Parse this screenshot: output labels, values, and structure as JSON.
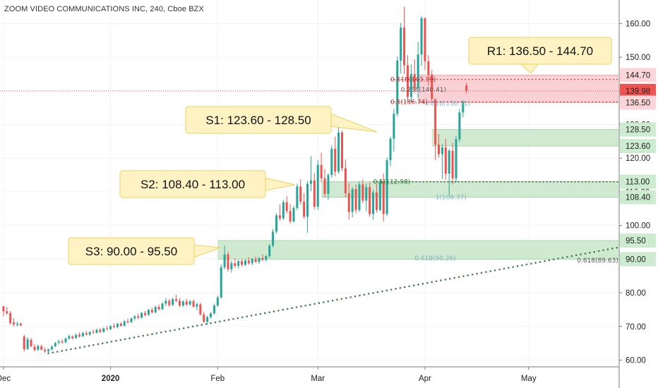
{
  "header": {
    "title": "ZOOM VIDEO COMMUNICATIONS INC, 240, Cboe BZX"
  },
  "colors": {
    "up": "#26a69a",
    "down": "#ef5350",
    "support_zone": "#c8e6c9",
    "resistance_zone": "#f8c8cc",
    "price_label": "#ef5350",
    "trendline": "#4a7c59",
    "callout_fill": "#fff3c4",
    "callout_border": "#f0d060"
  },
  "chart_data": {
    "type": "candlestick",
    "symbol": "ZOOM VIDEO COMMUNICATIONS INC",
    "interval": "240",
    "exchange": "Cboe BZX",
    "ylim": [
      58,
      167
    ],
    "y_ticks": [
      60,
      70,
      80,
      90,
      100,
      110,
      120,
      130,
      140,
      150,
      160
    ],
    "y_tick_labels": [
      "60.00",
      "70.00",
      "80.00",
      "90.00",
      "100.00",
      "110.00",
      "120.00",
      "130.00",
      "140.00",
      "150.00",
      "160.00"
    ],
    "x_labels": [
      {
        "label": "Dec",
        "date": "2019-12-01"
      },
      {
        "label": "2020",
        "date": "2020-01-01"
      },
      {
        "label": "Feb",
        "date": "2020-02-01"
      },
      {
        "label": "Mar",
        "date": "2020-03-01"
      },
      {
        "label": "Apr",
        "date": "2020-04-01"
      },
      {
        "label": "May",
        "date": "2020-05-01"
      }
    ],
    "xlim": [
      "2019-11-30",
      "2020-05-27"
    ],
    "last_price": 139.98,
    "price_axis_labels": [
      {
        "value": 144.7,
        "label": "144.70",
        "kind": "resistance"
      },
      {
        "value": 139.98,
        "label": "139.98",
        "kind": "last"
      },
      {
        "value": 136.5,
        "label": "136.50",
        "kind": "resistance"
      },
      {
        "value": 128.5,
        "label": "128.50",
        "kind": "support"
      },
      {
        "value": 123.6,
        "label": "123.60",
        "kind": "support"
      },
      {
        "value": 113.0,
        "label": "113.00",
        "kind": "support"
      },
      {
        "value": 108.4,
        "label": "108.40",
        "kind": "support"
      },
      {
        "value": 95.5,
        "label": "95.50",
        "kind": "support"
      },
      {
        "value": 90.0,
        "label": "90.00",
        "kind": "support"
      }
    ],
    "zones": [
      {
        "name": "R1",
        "low": 136.5,
        "high": 144.7,
        "start": "2020-03-30",
        "type": "resistance"
      },
      {
        "name": "S1",
        "low": 123.6,
        "high": 128.5,
        "start": "2020-04-03",
        "type": "support"
      },
      {
        "name": "S2",
        "low": 108.4,
        "high": 113.0,
        "start": "2020-03-02",
        "type": "support"
      },
      {
        "name": "S3",
        "low": 90.0,
        "high": 95.5,
        "start": "2020-02-01",
        "type": "support"
      }
    ],
    "callouts": [
      {
        "text": "R1: 136.50 - 144.70",
        "zone": "R1"
      },
      {
        "text": "S1: 123.60 - 128.50",
        "zone": "S1"
      },
      {
        "text": "S2: 108.40 - 113.00",
        "zone": "S2"
      },
      {
        "text": "S3: 90.00 - 95.50",
        "zone": "S3"
      }
    ],
    "fib_labels": [
      {
        "text": "0.618(143.39)",
        "value": 143.39,
        "date": "2020-03-22",
        "color": "#c62828"
      },
      {
        "text": "0.236(140.41)",
        "value": 140.41,
        "date": "2020-03-25",
        "color": "#555555"
      },
      {
        "text": "0.5(136.74)",
        "value": 136.74,
        "date": "2020-03-22",
        "color": "#c62828"
      },
      {
        "text": "0.618(136.31)",
        "value": 136.31,
        "date": "2020-04-01",
        "color": "#80b3c8"
      },
      {
        "text": "0.5(112.98)",
        "value": 112.98,
        "date": "2020-03-17",
        "color": "#2e7d32"
      },
      {
        "text": "1(108.37)",
        "value": 108.37,
        "date": "2020-04-04",
        "color": "#80b3c8"
      },
      {
        "text": "0.618(90.26)",
        "value": 90.26,
        "date": "2020-03-29",
        "color": "#80b3c8"
      },
      {
        "text": "0.618(89.63)",
        "value": 89.63,
        "date": "2020-05-15",
        "color": "#555555"
      }
    ],
    "trendline": {
      "start_date": "2019-12-14",
      "start_value": 62.0,
      "end_date": "2020-05-27",
      "end_value": 93.5
    },
    "candles": [
      [
        "2019-12-01",
        76,
        75,
        73,
        74.5
      ],
      [
        "2019-12-02",
        74.5,
        75.8,
        73.5,
        73.9
      ],
      [
        "2019-12-03",
        74.0,
        74.6,
        70.5,
        71.0
      ],
      [
        "2019-12-04",
        71.2,
        72.4,
        70.0,
        70.6
      ],
      [
        "2019-12-05",
        70.5,
        71.5,
        69.9,
        70.8
      ],
      [
        "2019-12-06",
        70.8,
        71.2,
        70.1,
        70.3
      ],
      [
        "2019-12-07",
        67.0,
        67.5,
        62.5,
        63.2
      ],
      [
        "2019-12-08",
        63.3,
        66.8,
        63.0,
        66.2
      ],
      [
        "2019-12-09",
        66.0,
        66.6,
        63.8,
        64.1
      ],
      [
        "2019-12-10",
        64.0,
        64.8,
        62.6,
        63.0
      ],
      [
        "2019-12-11",
        63.1,
        64.6,
        62.7,
        64.2
      ],
      [
        "2019-12-12",
        64.1,
        64.6,
        62.8,
        63.1
      ],
      [
        "2019-12-13",
        63.0,
        63.8,
        62.2,
        62.6
      ],
      [
        "2019-12-14",
        62.6,
        63.4,
        62.0,
        63.2
      ],
      [
        "2019-12-15",
        63.2,
        64.4,
        62.9,
        64.0
      ],
      [
        "2019-12-16",
        64.1,
        65.4,
        63.9,
        65.1
      ],
      [
        "2019-12-17",
        65.2,
        66.1,
        64.6,
        65.6
      ],
      [
        "2019-12-18",
        65.5,
        66.2,
        64.9,
        65.2
      ],
      [
        "2019-12-19",
        65.3,
        66.8,
        65.0,
        66.4
      ],
      [
        "2019-12-20",
        66.4,
        67.6,
        66.0,
        67.1
      ],
      [
        "2019-12-21",
        67.0,
        67.4,
        66.1,
        66.5
      ],
      [
        "2019-12-22",
        66.6,
        67.9,
        66.3,
        67.5
      ],
      [
        "2019-12-23",
        67.5,
        68.2,
        66.8,
        67.0
      ],
      [
        "2019-12-24",
        67.1,
        68.4,
        66.9,
        68.0
      ],
      [
        "2019-12-25",
        68.0,
        68.6,
        67.3,
        67.6
      ],
      [
        "2019-12-26",
        67.6,
        68.7,
        67.2,
        68.3
      ],
      [
        "2019-12-27",
        68.3,
        69.1,
        67.8,
        68.1
      ],
      [
        "2019-12-28",
        68.1,
        69.3,
        67.9,
        69.0
      ],
      [
        "2019-12-29",
        69.0,
        69.5,
        68.0,
        68.4
      ],
      [
        "2019-12-30",
        68.4,
        69.7,
        68.1,
        69.4
      ],
      [
        "2019-12-31",
        69.4,
        70.2,
        68.8,
        69.2
      ],
      [
        "2020-01-01",
        69.2,
        70.4,
        68.9,
        70.1
      ],
      [
        "2020-01-02",
        70.1,
        70.9,
        69.5,
        69.8
      ],
      [
        "2020-01-03",
        69.8,
        71.1,
        69.4,
        70.8
      ],
      [
        "2020-01-04",
        70.8,
        71.3,
        69.9,
        70.2
      ],
      [
        "2020-01-05",
        70.2,
        71.9,
        70.0,
        71.5
      ],
      [
        "2020-01-06",
        71.5,
        72.4,
        70.9,
        71.2
      ],
      [
        "2020-01-07",
        71.3,
        72.7,
        71.0,
        72.4
      ],
      [
        "2020-01-08",
        72.4,
        73.4,
        71.9,
        73.0
      ],
      [
        "2020-01-09",
        73.0,
        73.8,
        72.1,
        72.6
      ],
      [
        "2020-01-10",
        72.6,
        74.3,
        72.3,
        74.0
      ],
      [
        "2020-01-11",
        74.0,
        74.6,
        73.0,
        73.4
      ],
      [
        "2020-01-12",
        73.5,
        75.2,
        73.1,
        74.9
      ],
      [
        "2020-01-13",
        74.9,
        75.6,
        73.9,
        74.2
      ],
      [
        "2020-01-14",
        74.2,
        76.1,
        73.9,
        75.8
      ],
      [
        "2020-01-15",
        75.8,
        76.5,
        74.8,
        75.1
      ],
      [
        "2020-01-16",
        75.1,
        77.2,
        74.9,
        76.8
      ],
      [
        "2020-01-17",
        76.8,
        78.4,
        76.1,
        77.6
      ],
      [
        "2020-01-18",
        77.6,
        78.2,
        75.9,
        76.3
      ],
      [
        "2020-01-19",
        76.4,
        78.6,
        76.0,
        78.1
      ],
      [
        "2020-01-20",
        78.1,
        79.4,
        77.2,
        77.6
      ],
      [
        "2020-01-21",
        77.6,
        78.4,
        75.8,
        76.2
      ],
      [
        "2020-01-22",
        76.2,
        77.8,
        75.9,
        77.4
      ],
      [
        "2020-01-23",
        77.4,
        78.2,
        76.1,
        76.5
      ],
      [
        "2020-01-24",
        76.5,
        77.9,
        76.2,
        77.5
      ],
      [
        "2020-01-25",
        77.5,
        78.0,
        75.6,
        75.9
      ],
      [
        "2020-01-26",
        75.9,
        77.1,
        74.8,
        76.6
      ],
      [
        "2020-01-27",
        76.6,
        77.0,
        73.2,
        73.6
      ],
      [
        "2020-01-28",
        73.6,
        74.4,
        71.0,
        71.4
      ],
      [
        "2020-01-29",
        71.4,
        73.2,
        70.6,
        72.8
      ],
      [
        "2020-01-30",
        72.8,
        74.2,
        72.3,
        73.9
      ],
      [
        "2020-01-31",
        73.9,
        76.8,
        73.5,
        76.2
      ],
      [
        "2020-02-01",
        76.2,
        79.2,
        75.8,
        78.6
      ],
      [
        "2020-02-02",
        78.6,
        88.4,
        78.3,
        87.6
      ],
      [
        "2020-02-03",
        87.6,
        94.0,
        87.0,
        91.4
      ],
      [
        "2020-02-04",
        91.4,
        92.2,
        86.3,
        87.0
      ],
      [
        "2020-02-05",
        87.0,
        89.6,
        86.0,
        88.8
      ],
      [
        "2020-02-06",
        88.8,
        90.2,
        87.4,
        88.0
      ],
      [
        "2020-02-07",
        88.0,
        89.8,
        87.2,
        89.4
      ],
      [
        "2020-02-08",
        89.4,
        90.0,
        87.8,
        88.3
      ],
      [
        "2020-02-09",
        88.3,
        89.9,
        87.9,
        89.6
      ],
      [
        "2020-02-10",
        89.6,
        90.6,
        88.4,
        88.8
      ],
      [
        "2020-02-11",
        88.8,
        90.4,
        88.2,
        90.0
      ],
      [
        "2020-02-12",
        90.0,
        90.8,
        88.9,
        89.2
      ],
      [
        "2020-02-13",
        89.2,
        90.6,
        88.6,
        90.3
      ],
      [
        "2020-02-14",
        90.3,
        91.4,
        89.4,
        89.8
      ],
      [
        "2020-02-15",
        89.8,
        91.2,
        89.2,
        90.9
      ],
      [
        "2020-02-16",
        90.9,
        94.5,
        90.4,
        94.0
      ],
      [
        "2020-02-17",
        94.0,
        99.0,
        93.5,
        98.2
      ],
      [
        "2020-02-18",
        98.2,
        103.6,
        97.6,
        103.0
      ],
      [
        "2020-02-19",
        103.0,
        106.2,
        101.4,
        102.1
      ],
      [
        "2020-02-20",
        102.1,
        107.6,
        101.6,
        106.9
      ],
      [
        "2020-02-21",
        106.9,
        108.8,
        103.6,
        104.3
      ],
      [
        "2020-02-22",
        104.3,
        106.4,
        100.6,
        101.2
      ],
      [
        "2020-02-23",
        101.2,
        105.8,
        100.8,
        105.2
      ],
      [
        "2020-02-24",
        105.2,
        112.4,
        104.6,
        111.6
      ],
      [
        "2020-02-25",
        111.6,
        113.8,
        106.2,
        107.1
      ],
      [
        "2020-02-26",
        107.1,
        109.6,
        102.0,
        102.6
      ],
      [
        "2020-02-27",
        102.6,
        113.2,
        97.8,
        112.4
      ],
      [
        "2020-02-28",
        112.4,
        120.6,
        110.2,
        113.4
      ],
      [
        "2020-02-29",
        113.4,
        115.6,
        104.8,
        105.6
      ],
      [
        "2020-03-01",
        105.6,
        119.4,
        104.6,
        118.0
      ],
      [
        "2020-03-02",
        118.0,
        121.6,
        112.8,
        114.0
      ],
      [
        "2020-03-03",
        114.0,
        116.8,
        108.4,
        109.4
      ],
      [
        "2020-03-04",
        109.4,
        115.6,
        107.6,
        115.0
      ],
      [
        "2020-03-05",
        115.0,
        123.8,
        114.2,
        122.8
      ],
      [
        "2020-03-06",
        122.8,
        126.4,
        114.6,
        116.0
      ],
      [
        "2020-03-07",
        116.0,
        131.2,
        115.4,
        127.6
      ],
      [
        "2020-03-08",
        127.6,
        128.2,
        116.2,
        117.0
      ],
      [
        "2020-03-09",
        117.0,
        119.6,
        108.4,
        109.6
      ],
      [
        "2020-03-10",
        109.6,
        112.6,
        101.8,
        104.0
      ],
      [
        "2020-03-11",
        104.0,
        111.4,
        102.4,
        110.8
      ],
      [
        "2020-03-12",
        110.8,
        112.2,
        103.6,
        104.6
      ],
      [
        "2020-03-13",
        104.6,
        113.0,
        104.0,
        112.2
      ],
      [
        "2020-03-14",
        112.2,
        113.6,
        106.6,
        107.4
      ],
      [
        "2020-03-15",
        107.4,
        112.4,
        104.2,
        111.4
      ],
      [
        "2020-03-16",
        111.4,
        112.8,
        102.6,
        103.4
      ],
      [
        "2020-03-17",
        103.4,
        110.6,
        101.8,
        109.8
      ],
      [
        "2020-03-18",
        109.8,
        112.4,
        103.8,
        104.6
      ],
      [
        "2020-03-19",
        104.6,
        113.8,
        104.2,
        113.0
      ],
      [
        "2020-03-20",
        113.0,
        115.4,
        101.2,
        103.4
      ],
      [
        "2020-03-21",
        103.4,
        120.2,
        102.8,
        119.4
      ],
      [
        "2020-03-22",
        119.4,
        126.4,
        117.6,
        125.8
      ],
      [
        "2020-03-23",
        125.8,
        134.6,
        122.0,
        133.2
      ],
      [
        "2020-03-24",
        133.2,
        150.2,
        132.4,
        149.0
      ],
      [
        "2020-03-25",
        149.0,
        160.2,
        145.2,
        158.8
      ],
      [
        "2020-03-26",
        158.8,
        165.0,
        145.0,
        147.6
      ],
      [
        "2020-03-27",
        147.6,
        150.6,
        136.4,
        138.2
      ],
      [
        "2020-03-28",
        138.2,
        147.8,
        136.6,
        145.0
      ],
      [
        "2020-03-29",
        145.0,
        149.4,
        139.2,
        140.8
      ],
      [
        "2020-03-30",
        140.8,
        154.6,
        137.8,
        150.8
      ],
      [
        "2020-03-31",
        150.8,
        162.2,
        147.4,
        161.6
      ],
      [
        "2020-04-01",
        161.6,
        161.8,
        146.2,
        148.8
      ],
      [
        "2020-04-02",
        148.8,
        150.6,
        141.6,
        144.8
      ],
      [
        "2020-04-03",
        144.8,
        146.2,
        135.8,
        137.6
      ],
      [
        "2020-04-04",
        137.6,
        136.8,
        119.4,
        124.0
      ],
      [
        "2020-04-05",
        124.0,
        127.2,
        120.2,
        121.2
      ],
      [
        "2020-04-06",
        121.2,
        124.2,
        113.8,
        123.2
      ],
      [
        "2020-04-07",
        123.2,
        125.8,
        113.6,
        115.4
      ],
      [
        "2020-04-08",
        115.4,
        122.8,
        109.0,
        122.2
      ],
      [
        "2020-04-09",
        122.2,
        124.6,
        112.2,
        114.0
      ],
      [
        "2020-04-10",
        114.0,
        126.6,
        112.8,
        125.6
      ],
      [
        "2020-04-11",
        125.6,
        134.6,
        124.8,
        133.6
      ],
      [
        "2020-04-12",
        133.6,
        137.2,
        132.2,
        136.8
      ],
      [
        "2020-04-13",
        141.6,
        142.4,
        139.2,
        139.98
      ]
    ]
  }
}
